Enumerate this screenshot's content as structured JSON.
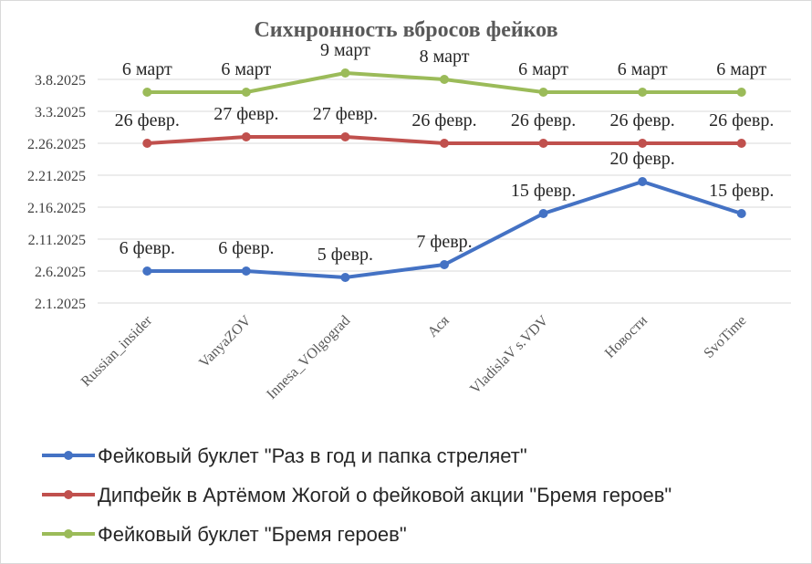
{
  "chart_data": {
    "type": "line",
    "title": "Сихнронность вбросов фейков",
    "categories": [
      "Russian_insider",
      "VanyaZOV",
      "Innesa_VOlgograd",
      "Ася",
      "VladislaV s.VDV",
      "Новости",
      "SvoTime"
    ],
    "y_tick_labels": [
      "2.1.2025",
      "2.6.2025",
      "2.11.2025",
      "2.16.2025",
      "2.21.2025",
      "2.26.2025",
      "3.3.2025",
      "3.8.2025"
    ],
    "y_tick_values": [
      "2025-02-01",
      "2025-02-06",
      "2025-02-11",
      "2025-02-16",
      "2025-02-21",
      "2025-02-26",
      "2025-03-03",
      "2025-03-08"
    ],
    "ylim": [
      "2025-02-01",
      "2025-03-08"
    ],
    "grid": true,
    "legend_position": "bottom",
    "series": [
      {
        "name": "Фейковый буклет \"Раз в год и папка стреляет\"",
        "color": "#4472c4",
        "values": [
          "2025-02-06",
          "2025-02-06",
          "2025-02-05",
          "2025-02-07",
          "2025-02-15",
          "2025-02-20",
          "2025-02-15"
        ],
        "labels": [
          "6 февр.",
          "6 февр.",
          "5 февр.",
          "7 февр.",
          "15 февр.",
          "20 февр.",
          "15 февр."
        ]
      },
      {
        "name": "Дипфейк в Артёмом Жогой о фейковой акции \"Бремя героев\"",
        "color": "#c0504d",
        "values": [
          "2025-02-26",
          "2025-02-27",
          "2025-02-27",
          "2025-02-26",
          "2025-02-26",
          "2025-02-26",
          "2025-02-26"
        ],
        "labels": [
          "26 февр.",
          "27 февр.",
          "27 февр.",
          "26 февр.",
          "26 февр.",
          "26 февр.",
          "26 февр."
        ]
      },
      {
        "name": "Фейковый буклет \"Бремя героев\"",
        "color": "#9bbb59",
        "values": [
          "2025-03-06",
          "2025-03-06",
          "2025-03-09",
          "2025-03-08",
          "2025-03-06",
          "2025-03-06",
          "2025-03-06"
        ],
        "labels": [
          "6 март",
          "6 март",
          "9 март",
          "8 март",
          "6 март",
          "6 март",
          "6 март"
        ]
      }
    ]
  }
}
